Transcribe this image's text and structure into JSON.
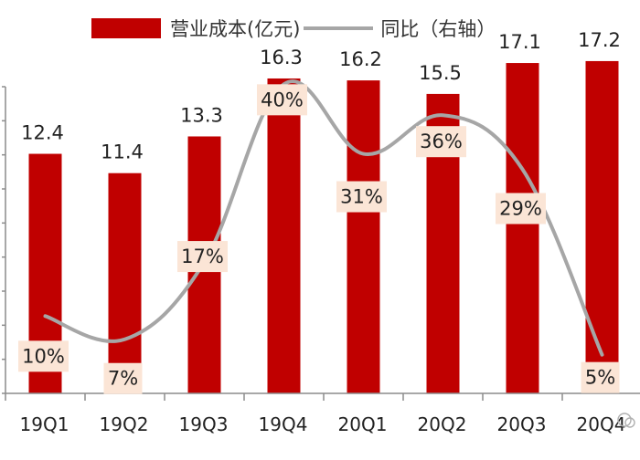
{
  "chart_data": {
    "type": "bar",
    "categories": [
      "19Q1",
      "19Q2",
      "19Q3",
      "19Q4",
      "20Q1",
      "20Q2",
      "20Q3",
      "20Q4"
    ],
    "series": [
      {
        "name": "营业成本(亿元)",
        "type": "bar",
        "axis": "left",
        "values": [
          12.4,
          11.4,
          13.3,
          16.3,
          16.2,
          15.5,
          17.1,
          17.2
        ],
        "labels": [
          "12.4",
          "11.4",
          "13.3",
          "16.3",
          "16.2",
          "15.5",
          "17.1",
          "17.2"
        ]
      },
      {
        "name": "同比（右轴）",
        "type": "line",
        "axis": "right",
        "values": [
          10,
          7,
          17,
          40,
          31,
          36,
          29,
          5
        ],
        "labels": [
          "10%",
          "7%",
          "17%",
          "40%",
          "31%",
          "36%",
          "29%",
          "5%"
        ]
      }
    ],
    "xlabel": "",
    "ylabel": "",
    "ylim": [
      0,
      18
    ],
    "y2lim": [
      0,
      45
    ],
    "legend": "top",
    "grid": false,
    "colors": {
      "bar": "#c00000",
      "line": "#a6a6a6",
      "label_bg": "#fbe5d6",
      "text": "#222222",
      "axis": "#8c8c8c"
    }
  }
}
